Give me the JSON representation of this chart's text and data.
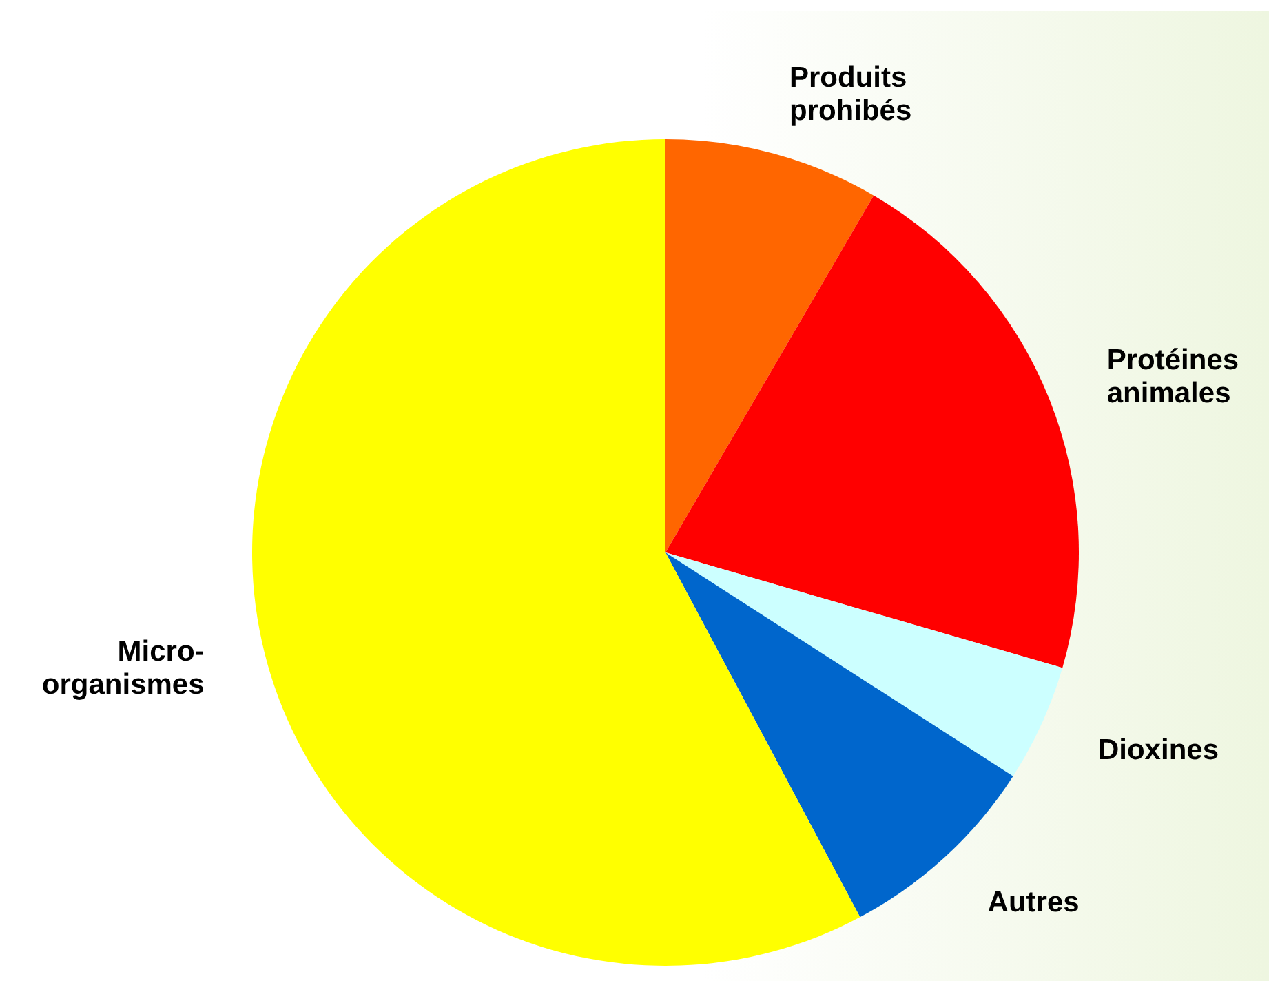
{
  "chart_data": {
    "type": "pie",
    "categories": [
      "Produits prohibés",
      "Protéines animales",
      "Dioxines",
      "Autres",
      "Micro-organismes"
    ],
    "values": [
      8.4,
      21.1,
      4.6,
      8.1,
      57.8
    ],
    "colors": [
      "#ff6600",
      "#ff0000",
      "#ccffff",
      "#0066cc",
      "#ffff00"
    ],
    "legend": false
  }
}
